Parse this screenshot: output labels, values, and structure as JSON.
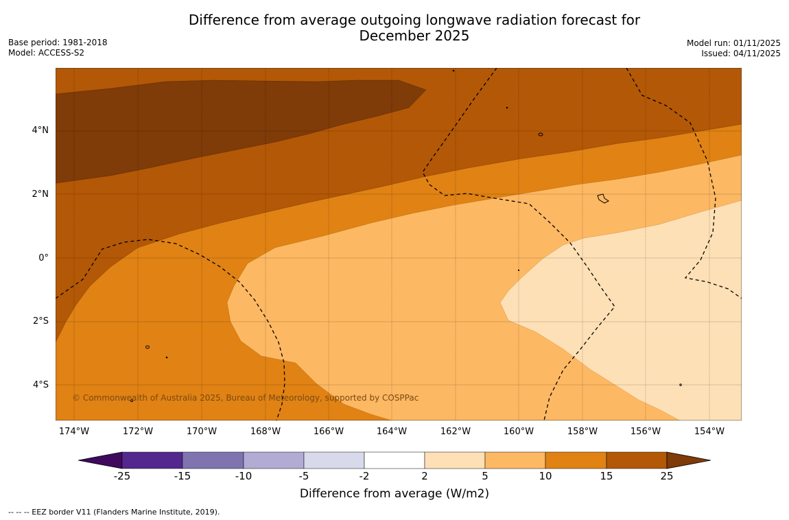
{
  "title_line1": "Difference from average outgoing longwave radiation forecast for",
  "title_line2": "December 2025",
  "base_period": "Base period: 1981-2018",
  "model": "Model: ACCESS-S2",
  "model_run": "Model run: 01/11/2025",
  "issued": "Issued: 04/11/2025",
  "lat_labels": [
    "4°N",
    "2°N",
    "0°",
    "2°S",
    "4°S"
  ],
  "lon_labels": [
    "174°W",
    "172°W",
    "170°W",
    "168°W",
    "166°W",
    "164°W",
    "162°W",
    "160°W",
    "158°W",
    "156°W",
    "154°W"
  ],
  "copyright": "© Commonwealth of Australia 2025, Bureau of Meteorology, supported by COSPPac",
  "colorbar": {
    "ticks": [
      "-25",
      "-15",
      "-10",
      "-5",
      "-2",
      "2",
      "5",
      "10",
      "15",
      "25"
    ],
    "colors": [
      "#3f0a5e",
      "#54278f",
      "#7f74b0",
      "#b2abd4",
      "#d8daeb",
      "#ffffff",
      "#fee0b6",
      "#fdb863",
      "#e08214",
      "#b35806",
      "#7f3b08"
    ],
    "label": "Difference from average (W/m2)"
  },
  "footnote": "--  --  -- EEZ border V11 (Flanders Marine Institute, 2019)."
}
